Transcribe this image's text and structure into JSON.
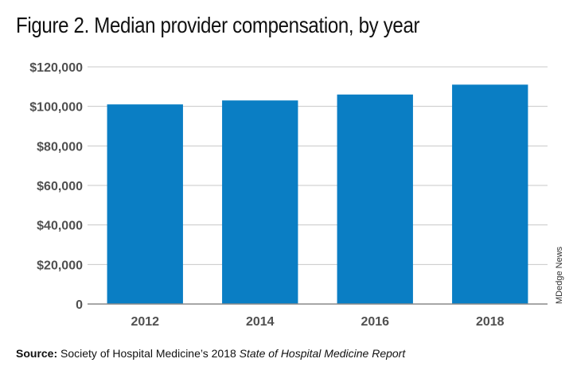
{
  "title": "Figure 2. Median provider compensation, by year",
  "credit": "MDedge News",
  "source": {
    "label": "Source:",
    "text_prefix": "Society of Hospital Medicine’s 2018",
    "text_italic": "State of Hospital Medicine Report"
  },
  "colors": {
    "bar": "#0a7ec4",
    "grid": "#c8c8c8",
    "axis": "#8a8a8a",
    "tick_text": "#505050"
  },
  "chart_data": {
    "type": "bar",
    "categories": [
      "2012",
      "2014",
      "2016",
      "2018"
    ],
    "values": [
      101000,
      103000,
      106000,
      111000
    ],
    "ylim": [
      0,
      120000
    ],
    "yticks": [
      0,
      20000,
      40000,
      60000,
      80000,
      100000,
      120000
    ],
    "ytick_labels": [
      "0",
      "$20,000",
      "$40,000",
      "$60,000",
      "$80,000",
      "$100,000",
      "$120,000"
    ],
    "grid": true,
    "xlabel": "",
    "ylabel": ""
  }
}
